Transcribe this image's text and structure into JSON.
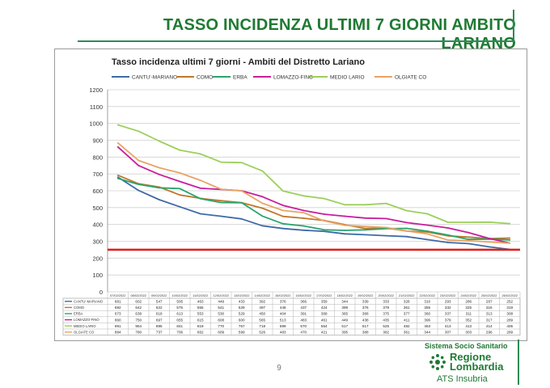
{
  "slide_title": "TASSO INCIDENZA ULTIMI 7 GIORNI AMBITO LARIANO",
  "page_number": "9",
  "logo": {
    "line1": "Sistema Socio Sanitario",
    "line2a": "Regione",
    "line2b": "Lombardia",
    "line3": "ATS Insubria",
    "color": "#1f7a33"
  },
  "chart_data": {
    "type": "line",
    "title": "Tasso incidenza ultimi 7 giorni - Ambiti del Distretto Lariano",
    "ylim": [
      0,
      1200
    ],
    "yticks": [
      0,
      100,
      200,
      300,
      400,
      500,
      600,
      700,
      800,
      900,
      1000,
      1100,
      1200
    ],
    "grid": true,
    "legend_position": "top",
    "reference_line": {
      "value": 250,
      "color": "#e0201c"
    },
    "categories": [
      "07/02/2022",
      "08/02/2022",
      "09/02/2022",
      "10/02/2022",
      "11/02/2022",
      "12/02/2022",
      "13/02/2022",
      "14/02/2022",
      "15/02/2022",
      "16/02/2022",
      "17/02/2022",
      "18/02/2022",
      "19/02/2022",
      "20/02/2022",
      "21/02/2022",
      "22/02/2022",
      "23/02/2022",
      "24/02/2022",
      "25/02/2022",
      "26/02/2022"
    ],
    "series": [
      {
        "name": "CANTU'-MARIANO",
        "color": "#3f6aa6",
        "values": [
          681,
          602,
          547,
          505,
          463,
          449,
          433,
          392,
          376,
          366,
          359,
          344,
          339,
          333,
          328,
          310,
          293,
          286,
          267,
          252
        ]
      },
      {
        "name": "COMO",
        "color": "#c0772b",
        "values": [
          692,
          642,
          622,
          575,
          555,
          541,
          529,
          497,
          448,
          437,
          424,
          399,
          376,
          379,
          361,
          355,
          332,
          325,
          316,
          319
        ]
      },
      {
        "name": "ERBA",
        "color": "#2aa56d",
        "values": [
          673,
          638,
          618,
          613,
          553,
          530,
          529,
          450,
          404,
          391,
          368,
          365,
          368,
          375,
          377,
          360,
          337,
          311,
          313,
          308
        ]
      },
      {
        "name": "LOMAZZO-FINO",
        "color": "#c81e9b",
        "values": [
          860,
          750,
          697,
          655,
          615,
          608,
          600,
          565,
          513,
          483,
          461,
          449,
          438,
          435,
          411,
          396,
          379,
          352,
          317,
          289
        ]
      },
      {
        "name": "MEDIO LARIO",
        "color": "#9ccf5b",
        "values": [
          991,
          954,
          895,
          841,
          819,
          770,
          767,
          718,
          599,
          570,
          554,
          517,
          517,
          525,
          482,
          463,
          413,
          413,
          414,
          405
        ]
      },
      {
        "name": "OLGIATE CO",
        "color": "#e8a464",
        "values": [
          884,
          780,
          737,
          706,
          662,
          609,
          599,
          526,
          483,
          470,
          421,
          395,
          388,
          382,
          361,
          344,
          307,
          303,
          296,
          289
        ]
      }
    ]
  }
}
